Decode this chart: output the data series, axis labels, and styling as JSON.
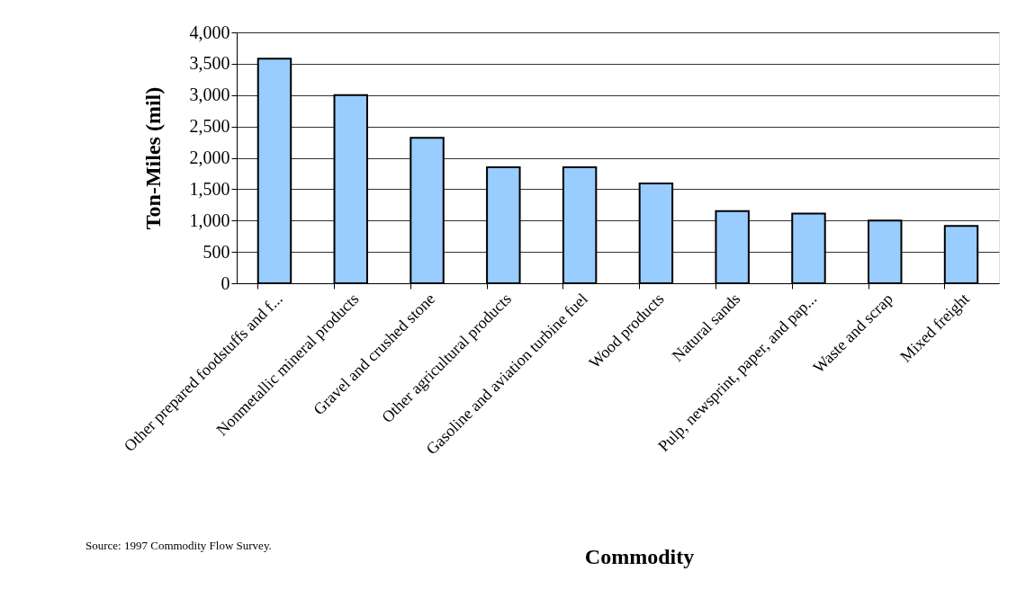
{
  "chart_data": {
    "type": "bar",
    "categories": [
      "Other prepared foodstuffs and f...",
      "Nonmetallic mineral products",
      "Gravel and crushed stone",
      "Other agricultural products",
      "Gasoline and aviation turbine fuel",
      "Wood products",
      "Natural sands",
      "Pulp, newsprint, paper, and pap...",
      "Waste and scrap",
      "Mixed freight"
    ],
    "values": [
      3580,
      3000,
      2320,
      1850,
      1850,
      1590,
      1150,
      1110,
      1000,
      915
    ],
    "color": "#99ccff",
    "xlabel": "Commodity",
    "ylabel": "Ton-Miles (mil)",
    "ylim": [
      0,
      4000
    ],
    "yticks": [
      {
        "value": 0,
        "label": "0"
      },
      {
        "value": 500,
        "label": "500"
      },
      {
        "value": 1000,
        "label": "1,000"
      },
      {
        "value": 1500,
        "label": "1,500"
      },
      {
        "value": 2000,
        "label": "2,000"
      },
      {
        "value": 2500,
        "label": "2,500"
      },
      {
        "value": 3000,
        "label": "3,000"
      },
      {
        "value": 3500,
        "label": "3,500"
      },
      {
        "value": 4000,
        "label": "4,000"
      }
    ],
    "grid": "y",
    "annotations": [
      "Source: 1997 Commodity Flow Survey."
    ]
  }
}
